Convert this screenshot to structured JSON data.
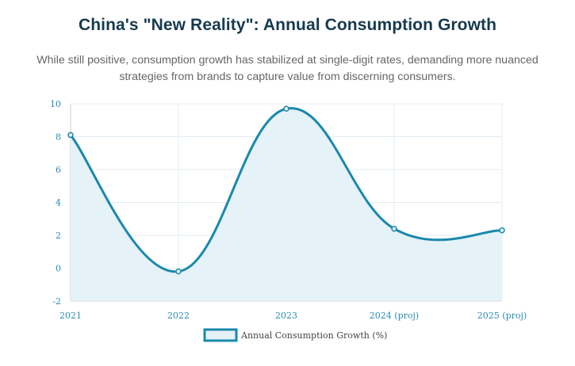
{
  "page": {
    "title": "China's \"New Reality\": Annual Consumption Growth",
    "subtitle": "While still positive, consumption growth has stabilized at single-digit rates, demanding more nuanced strategies from brands to capture value from discerning consumers."
  },
  "chart_data": {
    "type": "line",
    "title": "China's \"New Reality\": Annual Consumption Growth",
    "subtitle": "While still positive, consumption growth has stabilized at single-digit rates, demanding more nuanced strategies from brands to capture value from discerning consumers.",
    "categories": [
      "2021",
      "2022",
      "2023",
      "2024 (proj)",
      "2025 (proj)"
    ],
    "series": [
      {
        "name": "Annual Consumption Growth (%)",
        "values": [
          8.1,
          -0.2,
          9.7,
          2.4,
          2.3
        ]
      }
    ],
    "xlabel": "",
    "ylabel": "",
    "ylim": [
      -2,
      10
    ],
    "yticks": [
      "-2",
      "0",
      "2",
      "4",
      "6",
      "8",
      "10"
    ],
    "grid": true,
    "legend": "bottom",
    "colors": {
      "line": "#1a88ad",
      "fill": "#e5f2f8",
      "grid": "#e3ecf3",
      "axis": "#cfcfcf"
    }
  }
}
